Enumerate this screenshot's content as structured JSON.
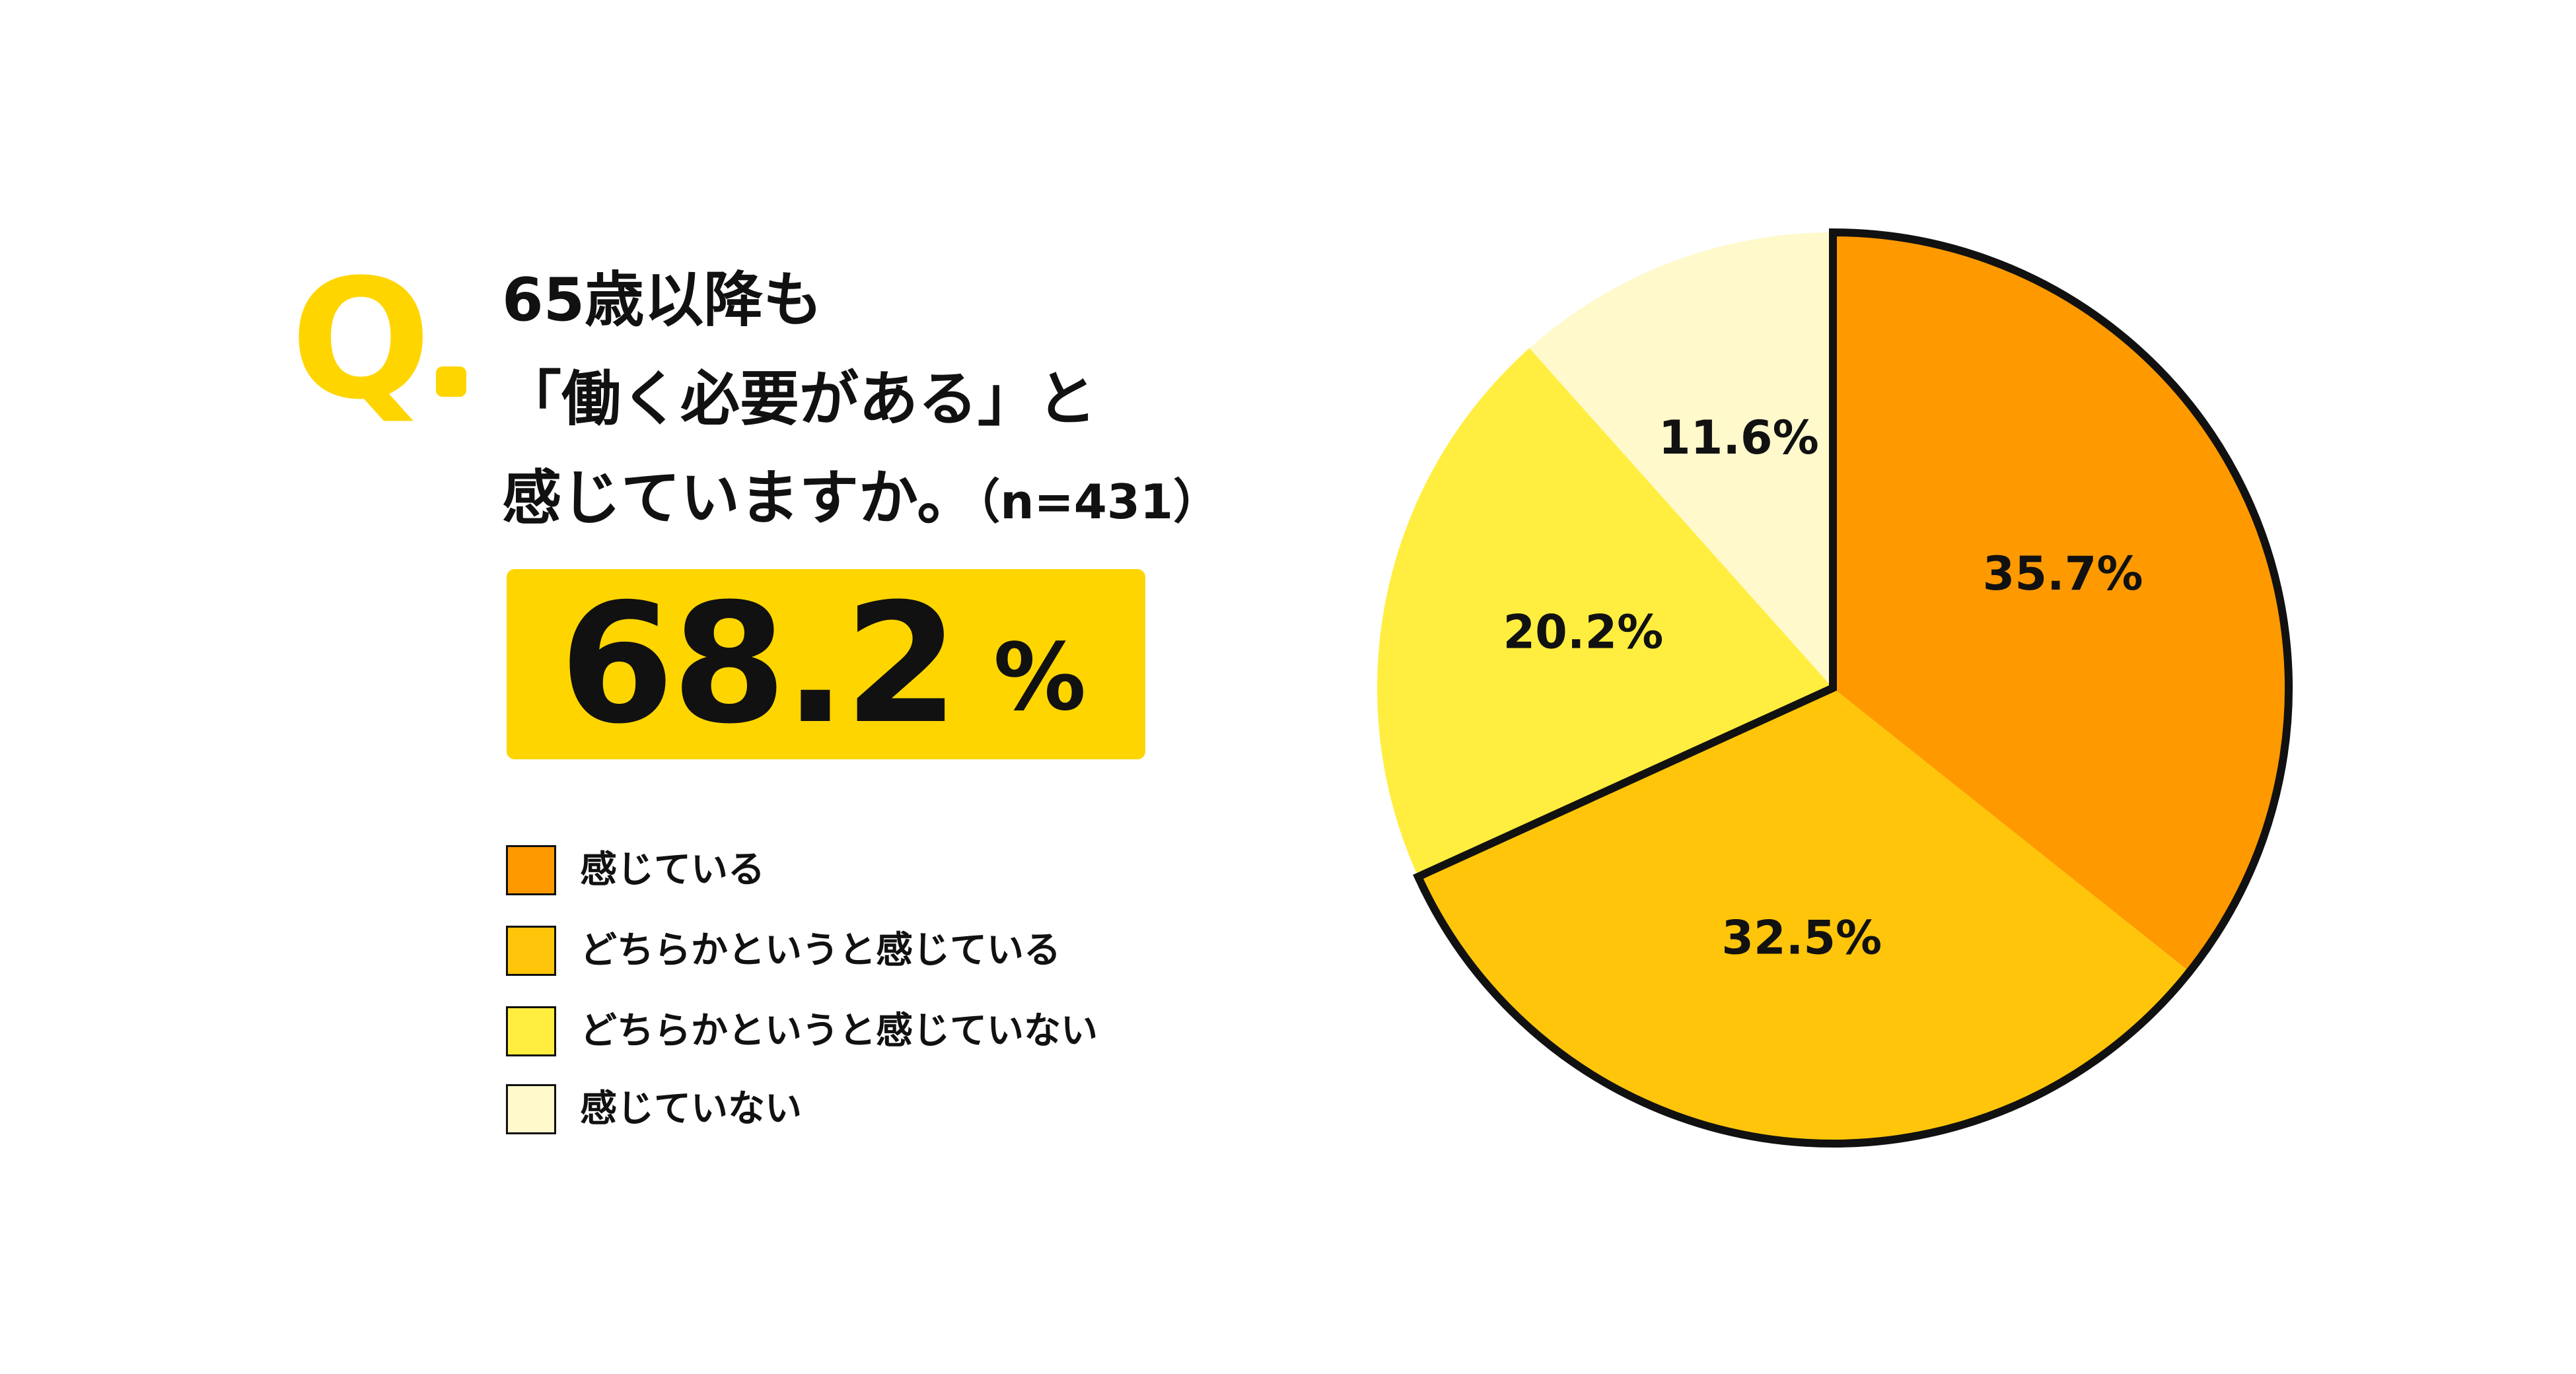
{
  "question": {
    "mark": "Q",
    "line1": "65歳以降も",
    "line2": "「働く必要がある」と",
    "line3": "感じていますか。",
    "sample": "（n=431）"
  },
  "highlight": {
    "value": "68.2",
    "unit": "%"
  },
  "chart_data": {
    "type": "pie",
    "title": "",
    "categories": [
      "感じている",
      "どちらかというと感じている",
      "どちらかというと感じていない",
      "感じていない"
    ],
    "values": [
      35.7,
      32.5,
      20.2,
      11.6
    ],
    "labels": [
      "35.7%",
      "32.5%",
      "20.2%",
      "11.6%"
    ],
    "colors": [
      "#FF9900",
      "#FFC50A",
      "#FFEE40",
      "#FFF9CC"
    ],
    "highlight_outline": [
      "感じている",
      "どちらかというと感じている"
    ],
    "legend_placement": "left",
    "start": "top",
    "direction": "clockwise"
  }
}
